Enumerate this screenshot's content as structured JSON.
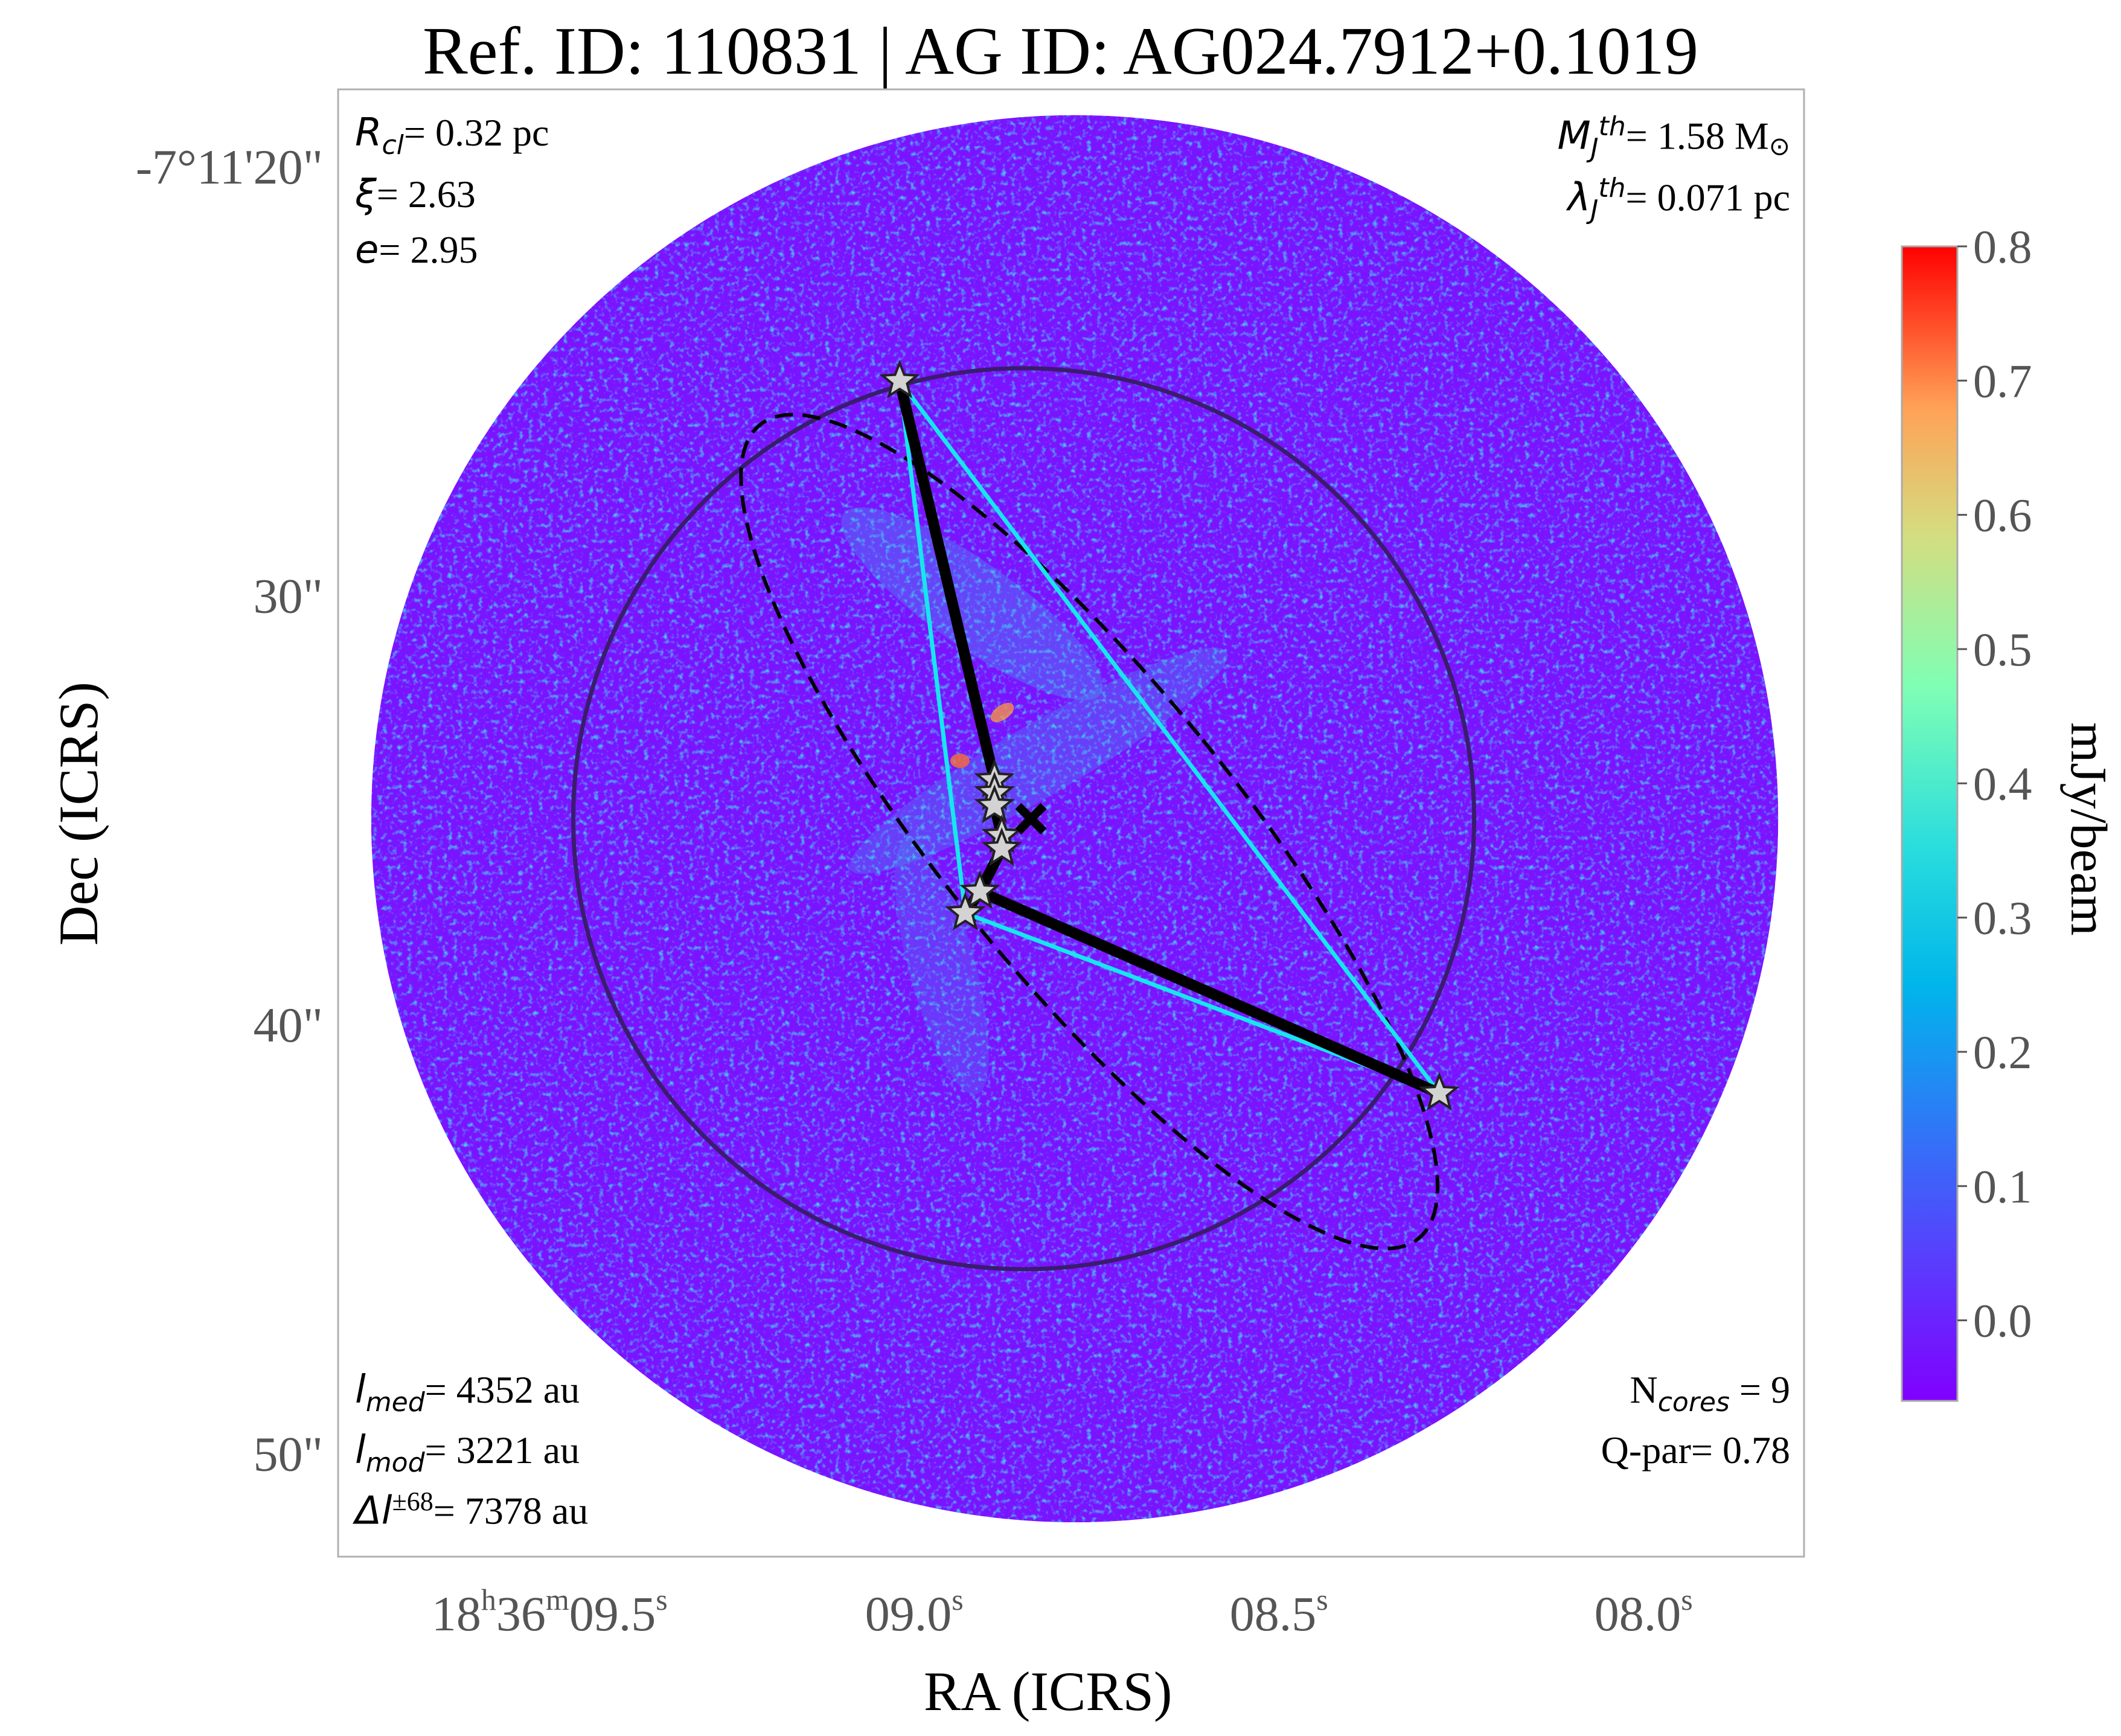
{
  "chart_data": {
    "type": "image",
    "title": "Ref. ID: 110831 | AG ID: AG024.7912+0.1019",
    "xlabel": "RA (ICRS)",
    "ylabel": "Dec (ICRS)",
    "colorbar": {
      "label": "mJy/beam",
      "range": [
        -0.06,
        0.8
      ],
      "ticks": [
        "0.0",
        "0.1",
        "0.2",
        "0.3",
        "0.4",
        "0.5",
        "0.6",
        "0.7",
        "0.8"
      ],
      "colormap": "rainbow"
    },
    "x_ticks": [
      {
        "ra_sec": 9.5,
        "h": "18",
        "m": "36",
        "s": "09.5"
      },
      {
        "ra_sec": 9.0,
        "s": "09.0"
      },
      {
        "ra_sec": 8.5,
        "s": "08.5"
      },
      {
        "ra_sec": 8.0,
        "s": "08.0"
      }
    ],
    "y_ticks": [
      {
        "dec_arcsec": 20,
        "label": "-7°11'20\""
      },
      {
        "dec_arcsec": 30,
        "label": "30\""
      },
      {
        "dec_arcsec": 40,
        "label": "40\""
      },
      {
        "dec_arcsec": 50,
        "label": "50\""
      }
    ],
    "axes_limits": {
      "ra_sec": [
        9.79,
        7.78
      ],
      "dec_arcsec": [
        18.2,
        52.4
      ]
    },
    "field_circle": {
      "ra_sec": 8.78,
      "dec_arcsec": 35.2,
      "radius_arcsec": 16.4
    },
    "cluster_circle": {
      "ra_sec": 8.85,
      "dec_arcsec": 35.2,
      "radius_arcsec": 10.5,
      "color": "#3a1c6e"
    },
    "center_marker": {
      "ra_sec": 8.84,
      "dec_arcsec": 35.2,
      "symbol": "X"
    },
    "fit_ellipse": {
      "ra_sec": 8.76,
      "dec_arcsec": 35.5,
      "semi_major_arcsec": 12.2,
      "semi_minor_arcsec": 3.4,
      "pa_deg": 39,
      "style": "dashed"
    },
    "cores": [
      {
        "ra_sec": 9.02,
        "dec_arcsec": 25.0
      },
      {
        "ra_sec": 8.89,
        "dec_arcsec": 34.3
      },
      {
        "ra_sec": 8.89,
        "dec_arcsec": 34.6
      },
      {
        "ra_sec": 8.89,
        "dec_arcsec": 34.9
      },
      {
        "ra_sec": 8.88,
        "dec_arcsec": 35.6
      },
      {
        "ra_sec": 8.88,
        "dec_arcsec": 35.9
      },
      {
        "ra_sec": 8.91,
        "dec_arcsec": 36.9
      },
      {
        "ra_sec": 8.93,
        "dec_arcsec": 37.4
      },
      {
        "ra_sec": 8.28,
        "dec_arcsec": 41.6
      }
    ],
    "mst_edges": [
      [
        0,
        1
      ],
      [
        1,
        2
      ],
      [
        2,
        3
      ],
      [
        3,
        4
      ],
      [
        4,
        5
      ],
      [
        5,
        6
      ],
      [
        6,
        7
      ],
      [
        6,
        8
      ]
    ],
    "hull": [
      0,
      8,
      7,
      0
    ],
    "colors": {
      "mst": "#000000",
      "hull": "#17e6ee",
      "ellipse": "#000000",
      "star_fill": "#d3d3d3"
    }
  },
  "annotations": {
    "top_left": [
      {
        "sym": "R",
        "sub": "cl",
        "text": "= 0.32 pc"
      },
      {
        "sym": "ξ",
        "text": "= 2.63"
      },
      {
        "sym": "e",
        "text": "= 2.95"
      }
    ],
    "top_right": [
      {
        "sym": "M",
        "sub": "J",
        "sup": "th",
        "text": "= 1.58 M"
      },
      {
        "sym": "λ",
        "sub": "J",
        "sup": "th",
        "text": "= 0.071 pc"
      }
    ],
    "bottom_left": [
      {
        "sym": "l",
        "sub": "med",
        "text": "= 4352 au"
      },
      {
        "sym": "l",
        "sub": "mod",
        "text": "= 3221 au"
      },
      {
        "sym": "Δl",
        "sup": "±68",
        "text": "= 7378 au"
      }
    ],
    "bottom_right": [
      {
        "pre": "N",
        "sub": "cores",
        "text": " = 9"
      },
      {
        "text": "Q-par= 0.78"
      }
    ]
  }
}
